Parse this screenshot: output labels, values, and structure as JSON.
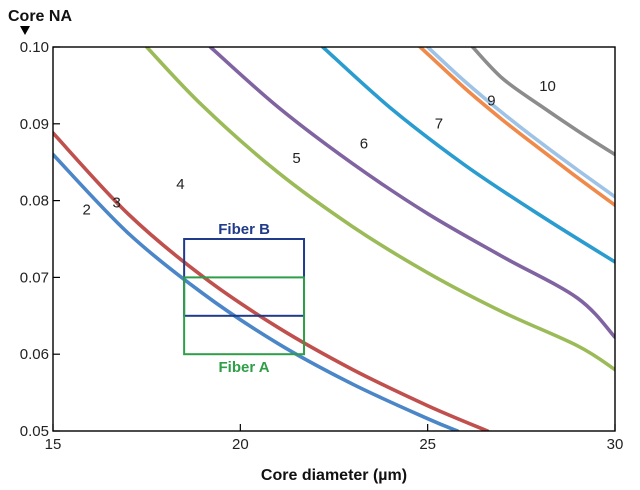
{
  "chart_data": {
    "type": "line",
    "ylabel": "Core NA",
    "xlabel": "Core diameter (µm)",
    "xlim": [
      15,
      30
    ],
    "ylim": [
      0.05,
      0.1
    ],
    "x_ticks": [
      "15",
      "20",
      "25",
      "30"
    ],
    "y_ticks": [
      "0.05",
      "0.06",
      "0.07",
      "0.08",
      "0.09",
      "0.10"
    ],
    "grid": false,
    "series": [
      {
        "name": "2",
        "color": "#4a86c8",
        "x": [
          15,
          17,
          19,
          21,
          23,
          25,
          25.8
        ],
        "y": [
          0.086,
          0.0758,
          0.0679,
          0.0614,
          0.0561,
          0.0516,
          0.05
        ]
      },
      {
        "name": "3",
        "color": "#c0504d",
        "x": [
          15,
          17,
          19,
          21,
          23,
          25,
          26.6
        ],
        "y": [
          0.0888,
          0.0783,
          0.0701,
          0.0635,
          0.058,
          0.0533,
          0.05
        ]
      },
      {
        "name": "4",
        "color": "#9bbb59",
        "x": [
          17.5,
          19,
          21,
          23,
          25,
          27,
          29,
          30
        ],
        "y": [
          0.1,
          0.0923,
          0.0837,
          0.0766,
          0.0706,
          0.0655,
          0.0611,
          0.058
        ]
      },
      {
        "name": "5",
        "color": "#8064a2",
        "x": [
          19.2,
          21,
          23,
          25,
          27,
          29,
          30
        ],
        "y": [
          0.1,
          0.0922,
          0.0848,
          0.0783,
          0.0727,
          0.0673,
          0.0622
        ]
      },
      {
        "name": "6",
        "color": "#2a9ccf",
        "x": [
          22.2,
          24,
          26,
          28,
          30
        ],
        "y": [
          0.1,
          0.0921,
          0.0846,
          0.0781,
          0.072
        ]
      },
      {
        "name": "7",
        "color": "#f08a4a",
        "x": [
          24.8,
          26,
          27,
          28,
          29,
          30
        ],
        "y": [
          0.1,
          0.0946,
          0.0905,
          0.0867,
          0.083,
          0.0794
        ]
      },
      {
        "name": "9",
        "color": "#9ec3e6",
        "x": [
          25.0,
          26,
          27,
          28,
          29,
          30
        ],
        "y": [
          0.1,
          0.0955,
          0.0914,
          0.0876,
          0.084,
          0.0805
        ]
      },
      {
        "name": "10",
        "color": "#8c8c8c",
        "x": [
          26.2,
          27,
          28,
          29,
          30
        ],
        "y": [
          0.1,
          0.0959,
          0.0924,
          0.0891,
          0.086
        ]
      }
    ],
    "curve_labels": [
      {
        "text": "2",
        "x": 15.9,
        "y": 0.0782
      },
      {
        "text": "3",
        "x": 16.7,
        "y": 0.0791
      },
      {
        "text": "4",
        "x": 18.4,
        "y": 0.0815
      },
      {
        "text": "5",
        "x": 21.5,
        "y": 0.0849
      },
      {
        "text": "6",
        "x": 23.3,
        "y": 0.0868
      },
      {
        "text": "7",
        "x": 25.3,
        "y": 0.0894
      },
      {
        "text": "9",
        "x": 26.7,
        "y": 0.0924
      },
      {
        "text": "10",
        "x": 28.2,
        "y": 0.0943
      }
    ],
    "boxes": [
      {
        "label": "Fiber B",
        "color": "#1f3b8a",
        "x": [
          18.5,
          21.7
        ],
        "y": [
          0.065,
          0.075
        ],
        "label_position": "top"
      },
      {
        "label": "Fiber A",
        "color": "#2e9e48",
        "x": [
          18.5,
          21.7
        ],
        "y": [
          0.06,
          0.07
        ],
        "label_position": "bottom"
      }
    ]
  }
}
